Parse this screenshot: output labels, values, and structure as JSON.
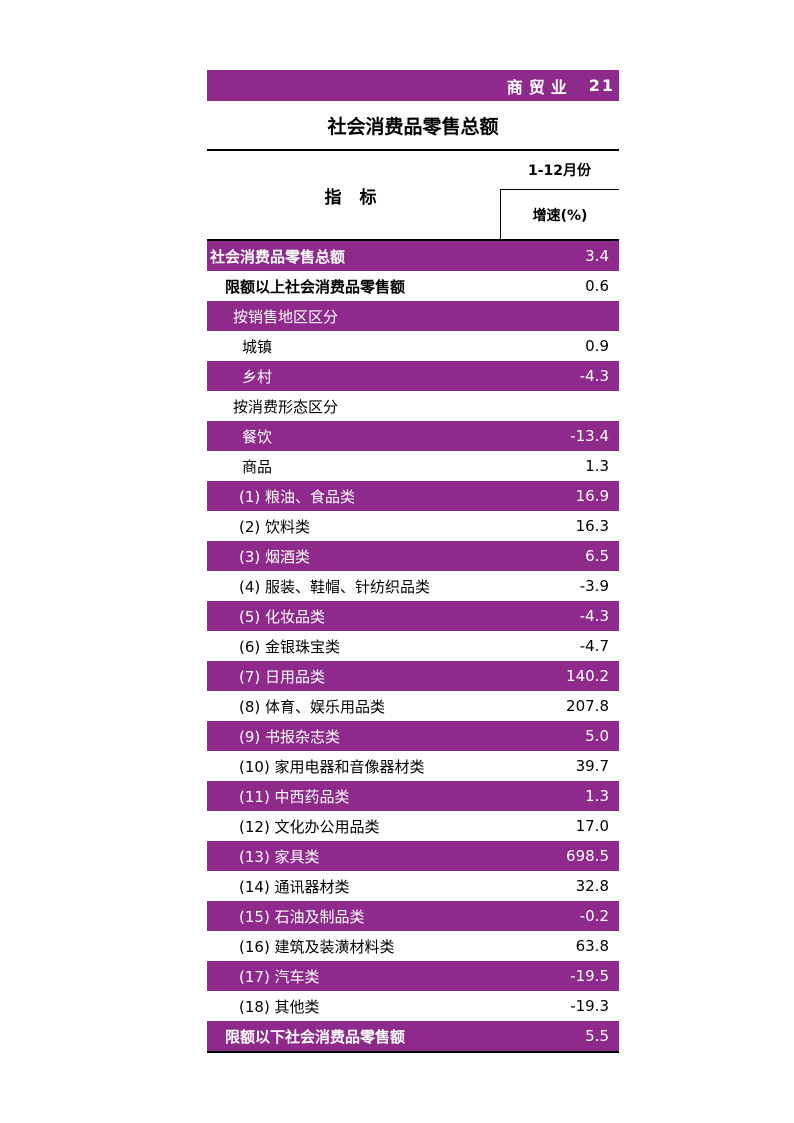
{
  "header": {
    "section": "商贸业",
    "page_number": "21"
  },
  "title": "社会消费品零售总额",
  "table_header": {
    "indicator": "指 标",
    "period": "1-12月份",
    "growth": "增速(%)"
  },
  "rows": [
    {
      "label": "社会消费品零售总额",
      "value": "3.4"
    },
    {
      "label": "限额以上社会消费品零售额",
      "value": "0.6"
    },
    {
      "label": "按销售地区区分",
      "value": ""
    },
    {
      "label": "城镇",
      "value": "0.9"
    },
    {
      "label": "乡村",
      "value": "-4.3"
    },
    {
      "label": "按消费形态区分",
      "value": ""
    },
    {
      "label": "餐饮",
      "value": "-13.4"
    },
    {
      "label": "商品",
      "value": "1.3"
    },
    {
      "label": "(1) 粮油、食品类",
      "value": "16.9"
    },
    {
      "label": "(2) 饮料类",
      "value": "16.3"
    },
    {
      "label": "(3) 烟酒类",
      "value": "6.5"
    },
    {
      "label": "(4) 服装、鞋帽、针纺织品类",
      "value": "-3.9"
    },
    {
      "label": "(5) 化妆品类",
      "value": "-4.3"
    },
    {
      "label": "(6) 金银珠宝类",
      "value": "-4.7"
    },
    {
      "label": "(7) 日用品类",
      "value": "140.2"
    },
    {
      "label": "(8) 体育、娱乐用品类",
      "value": "207.8"
    },
    {
      "label": "(9) 书报杂志类",
      "value": "5.0"
    },
    {
      "label": "(10) 家用电器和音像器材类",
      "value": "39.7"
    },
    {
      "label": "(11) 中西药品类",
      "value": "1.3"
    },
    {
      "label": "(12) 文化办公用品类",
      "value": "17.0"
    },
    {
      "label": "(13) 家具类",
      "value": "698.5"
    },
    {
      "label": "(14) 通讯器材类",
      "value": "32.8"
    },
    {
      "label": "(15) 石油及制品类",
      "value": "-0.2"
    },
    {
      "label": "(16) 建筑及装潢材料类",
      "value": "63.8"
    },
    {
      "label": "(17) 汽车类",
      "value": "-19.5"
    },
    {
      "label": "(18) 其他类",
      "value": "-19.3"
    },
    {
      "label": "限额以下社会消费品零售额",
      "value": "5.5"
    }
  ],
  "colors": {
    "accent": "#8d2a8b",
    "text_on_accent": "#ffffff"
  }
}
